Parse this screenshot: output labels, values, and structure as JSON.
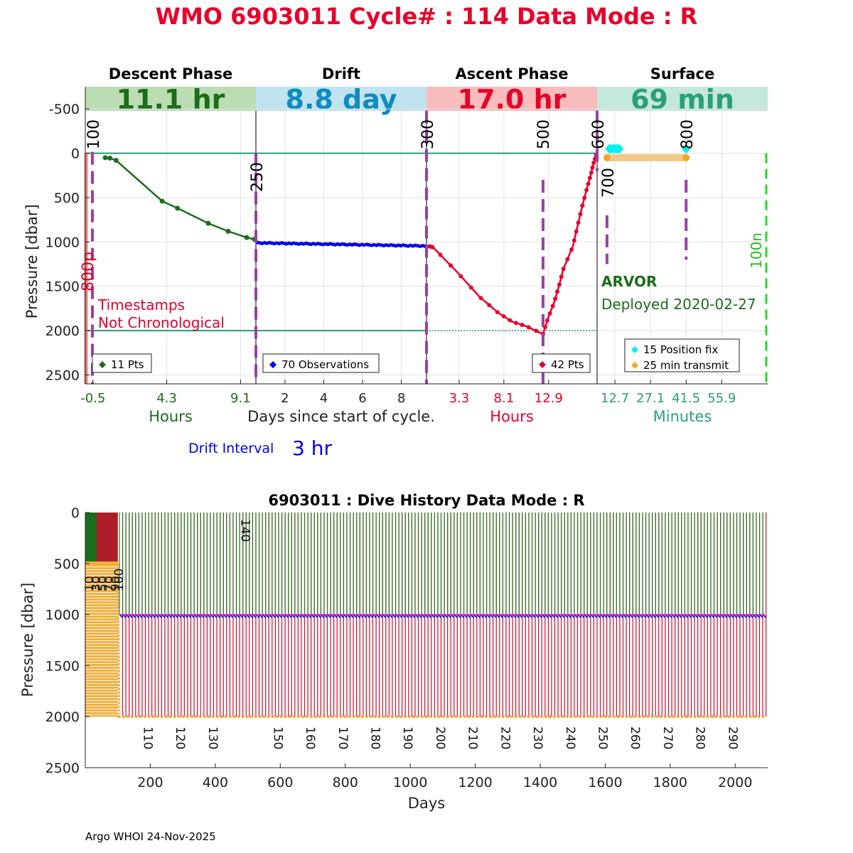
{
  "title": "WMO 6903011   Cycle# : 114   Data Mode : R",
  "title_color": "#e8002a",
  "footer": "Argo WHOI 24-Nov-2025",
  "chart_data": [
    {
      "type": "line",
      "name": "cycle-profile",
      "ylabel": "Pressure [dbar]",
      "ylim": [
        -750,
        2600
      ],
      "y_ticks": [
        "-500",
        "0",
        "500",
        "1000",
        "1500",
        "2000",
        "2500"
      ],
      "y_tick_values": [
        -500,
        0,
        500,
        1000,
        1500,
        2000,
        2500
      ],
      "phases": [
        {
          "name": "Descent Phase",
          "duration": "11.1 hr",
          "band_color": "#bcdcb4",
          "text_color": "#1a6e1a"
        },
        {
          "name": "Drift",
          "duration": "8.8 day",
          "band_color": "#bfe3ef",
          "text_color": "#0f8bbf"
        },
        {
          "name": "Ascent Phase",
          "duration": "17.0 hr",
          "band_color": "#f8bcbc",
          "text_color": "#e8002a"
        },
        {
          "name": "Surface",
          "duration": "69 min",
          "band_color": "#c4e8da",
          "text_color": "#2aa07a"
        }
      ],
      "descent_ticks": [
        "-0.5",
        "4.3",
        "9.1"
      ],
      "descent_tick_values": [
        -0.5,
        4.3,
        9.1
      ],
      "descent_xlabel": "Hours",
      "drift_ticks": [
        "2",
        "4",
        "6",
        "8"
      ],
      "drift_tick_values": [
        2,
        4,
        6,
        8
      ],
      "drift_xlabel": "Days since start of cycle.",
      "ascent_ticks": [
        "3.3",
        "8.1",
        "12.9"
      ],
      "ascent_tick_values": [
        3.3,
        8.1,
        12.9
      ],
      "ascent_xlabel": "Hours",
      "surface_ticks": [
        "12.7",
        "27.1",
        "41.5",
        "55.9"
      ],
      "surface_tick_values": [
        12.7,
        27.1,
        41.5,
        55.9
      ],
      "surface_xlabel": "Minutes",
      "drift_interval_label": "Drift Interval",
      "drift_interval_value": "3 hr",
      "marker_labels": {
        "m100": "100",
        "m250": "250",
        "m300": "300",
        "m500": "500",
        "m600": "600",
        "m700": "700",
        "m800": "800",
        "m800p": "800p",
        "m100n": "100n"
      },
      "warning": [
        "Timestamps",
        "Not Chronological"
      ],
      "float_type": "ARVOR",
      "deployed": "Deployed 2020-02-27",
      "descent_series": {
        "name": "11 Pts",
        "color": "#1a6e1a",
        "x_hours": [
          0.3,
          0.6,
          1.0,
          4.0,
          5.0,
          7.0,
          8.3,
          9.5,
          10.0
        ],
        "y": [
          50,
          55,
          80,
          540,
          620,
          790,
          880,
          950,
          970
        ]
      },
      "drift_series": {
        "name": "70 Observations",
        "color": "#0000ee",
        "start_y": 1010,
        "end_y": 1045
      },
      "ascent_series": {
        "name": "42 Pts",
        "color": "#e8002a",
        "x_hours": [
          0.1,
          0.5,
          3.0,
          5.5,
          7.5,
          9.0,
          10.5,
          12.3,
          12.8,
          13.5,
          14.0,
          14.5,
          15.5,
          16.0,
          16.5,
          17.0,
          17.4,
          17.7,
          18.0
        ],
        "y": [
          1050,
          1060,
          1330,
          1620,
          1800,
          1900,
          1950,
          2040,
          1870,
          1680,
          1500,
          1300,
          1050,
          820,
          600,
          400,
          250,
          120,
          20
        ]
      },
      "surface_legend": [
        "15 Position fix",
        "25 min transmit"
      ],
      "surface_colors": {
        "position": "#00f0f0",
        "transmit": "#f5a623",
        "transmit_bar": "#f5c88a"
      }
    },
    {
      "type": "line",
      "name": "dive-history",
      "title": "6903011 : Dive History      Data Mode : R",
      "xlabel": "Days",
      "ylabel": "Pressure [dbar]",
      "xlim": [
        0,
        2100
      ],
      "ylim": [
        0,
        2500
      ],
      "x_ticks": [
        "200",
        "400",
        "600",
        "800",
        "1000",
        "1200",
        "1400",
        "1600",
        "1800",
        "2000"
      ],
      "x_tick_values": [
        200,
        400,
        600,
        800,
        1000,
        1200,
        1400,
        1600,
        1800,
        2000
      ],
      "y_ticks": [
        "0",
        "500",
        "1000",
        "1500",
        "2000",
        "2500"
      ],
      "y_tick_values": [
        0,
        500,
        1000,
        1500,
        2000,
        2500
      ],
      "cycle_labels": [
        "110",
        "120",
        "130",
        "150",
        "160",
        "170",
        "180",
        "190",
        "200",
        "210",
        "220",
        "230",
        "240",
        "250",
        "260",
        "270",
        "280",
        "290"
      ],
      "cycle_label_days": [
        198,
        298,
        398,
        598,
        698,
        798,
        898,
        998,
        1098,
        1198,
        1298,
        1398,
        1498,
        1598,
        1698,
        1798,
        1898,
        1998
      ],
      "cycle_label_top": "140",
      "cycle_label_top_day": 498,
      "early_labels": [
        "10",
        "30",
        "50",
        "70",
        "90",
        "100"
      ],
      "early_label_days": [
        8,
        28,
        48,
        68,
        88,
        98
      ],
      "drift_pressure": 1000,
      "profile_pressure": 2000,
      "first_cycle_day": 105,
      "cycle_interval_days": 10,
      "last_day": 2090
    }
  ]
}
